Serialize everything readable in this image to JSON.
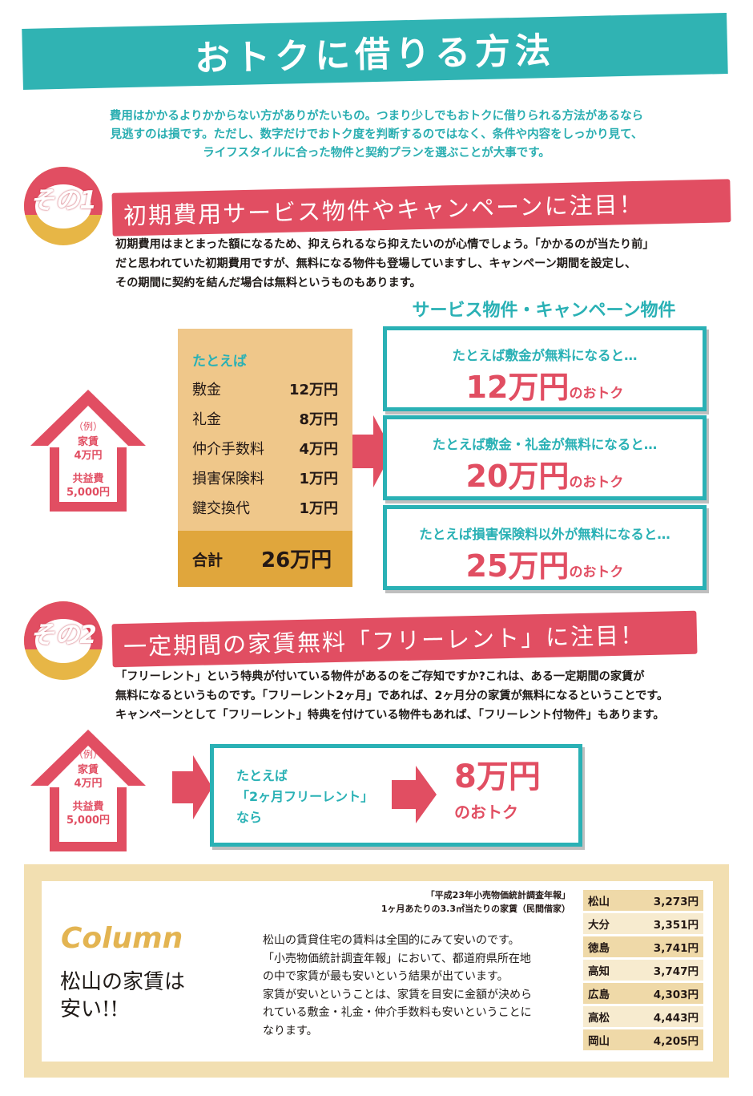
{
  "title": "おトクに借りる方法",
  "intro": [
    "費用はかかるよりかからない方がありがたいもの。つまり少しでもおトクに借りられる方法があるなら",
    "見逃すのは損です。ただし、数字だけでおトク度を判断するのではなく、条件や内容をしっかり見て、",
    "ライフスタイルに合った物件と契約プランを選ぶことが大事です。"
  ],
  "section1": {
    "badge": "その1",
    "heading": "初期費用サービス物件やキャンペーンに注目！",
    "body": [
      "初期費用はまとまった額になるため、抑えられるなら抑えたいのが心情でしょう。「かかるのが当たり前」",
      "だと思われていた初期費用ですが、無料になる物件も登場していますし、キャンペーン期間を設定し、",
      "その期間に契約を結んだ場合は無料というものもあります。"
    ],
    "house": {
      "line1": "（例）",
      "line2": "家賃",
      "line3": "4万円",
      "line4": "共益費",
      "line5": "5,000円"
    },
    "example": {
      "label": "たとえば",
      "rows": [
        {
          "name": "敷金",
          "value": "12万円"
        },
        {
          "name": "礼金",
          "value": "8万円"
        },
        {
          "name": "仲介手数料",
          "value": "4万円"
        },
        {
          "name": "損害保険料",
          "value": "1万円"
        },
        {
          "name": "鍵交換代",
          "value": "1万円"
        }
      ],
      "total_label": "合計",
      "total_value": "26万円"
    },
    "service_title": "サービス物件・キャンペーン物件",
    "cases": [
      {
        "line": "たとえば敷金が無料になると…",
        "amount": "12万円",
        "suffix": "のおトク"
      },
      {
        "line": "たとえば敷金・礼金が無料になると…",
        "amount": "20万円",
        "suffix": "のおトク"
      },
      {
        "line": "たとえば損害保険料以外が無料になると…",
        "amount": "25万円",
        "suffix": "のおトク"
      }
    ]
  },
  "section2": {
    "badge": "その2",
    "heading": "一定期間の家賃無料「フリーレント」に注目！",
    "body": [
      "「フリーレント」という特典が付いている物件があるのをご存知ですか?これは、ある一定期間の家賃が",
      "無料になるというものです。「フリーレント2ヶ月」であれば、2ヶ月分の家賃が無料になるということです。",
      "キャンペーンとして「フリーレント」特典を付けている物件もあれば、「フリーレント付物件」もあります。"
    ],
    "house": {
      "line1": "（例）",
      "line2": "家賃",
      "line3": "4万円",
      "line4": "共益費",
      "line5": "5,000円"
    },
    "case_lines": [
      "たとえば",
      "「2ヶ月フリーレント」",
      "なら"
    ],
    "result_amount": "8万円",
    "result_suffix": "のおトク"
  },
  "column": {
    "tag": "Column",
    "heading_line1": "松山の家賃は",
    "heading_line2": "安い!!",
    "text": [
      "松山の賃貸住宅の賃料は全国的にみて安いのです。",
      "「小売物価統計調査年報」において、都道府県所在地",
      "の中で家賃が最も安いという結果が出ています。",
      "家賃が安いということは、家賃を目安に金額が決めら",
      "れている敷金・礼金・仲介手数料も安いということに",
      "なります。"
    ],
    "source_line1": "「平成23年小売物価統計調査年報」",
    "source_line2": "1ヶ月あたりの3.3㎡当たりの家賃（民間借家）",
    "table": [
      {
        "city": "松山",
        "rent": "3,273円"
      },
      {
        "city": "大分",
        "rent": "3,351円"
      },
      {
        "city": "徳島",
        "rent": "3,741円"
      },
      {
        "city": "高知",
        "rent": "3,747円"
      },
      {
        "city": "広島",
        "rent": "4,303円"
      },
      {
        "city": "高松",
        "rent": "4,443円"
      },
      {
        "city": "岡山",
        "rent": "4,205円"
      }
    ]
  },
  "colors": {
    "teal": "#30b3b3",
    "red": "#e14e62",
    "orange": "#e0a63c",
    "beige": "#efc78a"
  }
}
